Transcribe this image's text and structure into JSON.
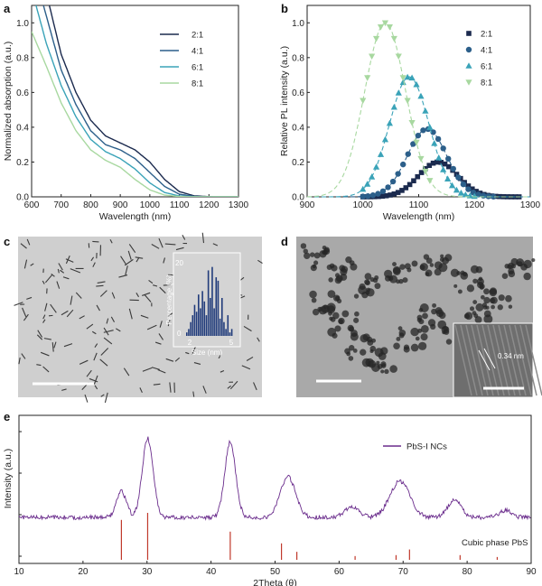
{
  "panels": {
    "a": {
      "letter": "a"
    },
    "b": {
      "letter": "b"
    },
    "c": {
      "letter": "c"
    },
    "d": {
      "letter": "d",
      "lattice_label": "0.34 nm"
    },
    "e": {
      "letter": "e"
    }
  },
  "colors": {
    "2:1": "#1b2a4e",
    "4:1": "#2c5f8a",
    "6:1": "#3aa3b8",
    "8:1": "#a8d8a0",
    "xrd": "#6a2c8c",
    "ref": "#c0392b",
    "hist": "#1f3a7a"
  },
  "chart_data": [
    {
      "id": "a",
      "type": "line",
      "xlabel": "Wavelength (nm)",
      "ylabel": "Normalized absorption (a.u.)",
      "xlim": [
        600,
        1300
      ],
      "ylim": [
        0,
        1.1
      ],
      "xticks": [
        600,
        700,
        800,
        900,
        1000,
        1100,
        1200,
        1300
      ],
      "yticks": [
        0.0,
        0.2,
        0.4,
        0.6,
        0.8,
        1.0
      ],
      "ytick_labels": [
        "0.0",
        "0.2",
        "0.4",
        "0.6",
        "0.8",
        "1.0"
      ],
      "legend": "top-right",
      "series": [
        {
          "name": "2:1",
          "x": [
            660,
            700,
            750,
            800,
            850,
            900,
            950,
            1000,
            1050,
            1100,
            1150,
            1200,
            1250,
            1300
          ],
          "y": [
            1.1,
            0.82,
            0.6,
            0.44,
            0.35,
            0.31,
            0.27,
            0.2,
            0.1,
            0.03,
            0.006,
            0.001,
            0,
            0
          ]
        },
        {
          "name": "4:1",
          "x": [
            640,
            700,
            750,
            800,
            850,
            900,
            950,
            1000,
            1050,
            1100,
            1150,
            1200,
            1250,
            1300
          ],
          "y": [
            1.1,
            0.73,
            0.53,
            0.38,
            0.3,
            0.27,
            0.22,
            0.14,
            0.06,
            0.015,
            0.003,
            0,
            0,
            0
          ]
        },
        {
          "name": "6:1",
          "x": [
            615,
            650,
            700,
            750,
            800,
            850,
            900,
            950,
            1000,
            1050,
            1100,
            1150,
            1200,
            1300
          ],
          "y": [
            1.1,
            0.88,
            0.64,
            0.46,
            0.33,
            0.26,
            0.22,
            0.16,
            0.08,
            0.025,
            0.005,
            0.001,
            0,
            0
          ]
        },
        {
          "name": "8:1",
          "x": [
            600,
            650,
            700,
            750,
            800,
            850,
            900,
            950,
            1000,
            1050,
            1100,
            1150,
            1200,
            1300
          ],
          "y": [
            0.95,
            0.75,
            0.54,
            0.38,
            0.27,
            0.21,
            0.17,
            0.1,
            0.04,
            0.01,
            0.002,
            0,
            0,
            0
          ]
        }
      ]
    },
    {
      "id": "b",
      "type": "scatter",
      "xlabel": "Wavelength (nm)",
      "ylabel": "Relative PL intensity (a.u.)",
      "xlim": [
        900,
        1300
      ],
      "ylim": [
        0,
        1.1
      ],
      "xticks": [
        900,
        1000,
        1100,
        1200,
        1300
      ],
      "yticks": [
        0.0,
        0.2,
        0.4,
        0.6,
        0.8,
        1.0
      ],
      "ytick_labels": [
        "0.0",
        "0.2",
        "0.4",
        "0.6",
        "0.8",
        "1.0"
      ],
      "legend": "top-right",
      "series": [
        {
          "name": "2:1",
          "marker": "square",
          "center": 1135,
          "width": 50,
          "peak": 0.2,
          "points_from": 1000,
          "points_to": 1280,
          "step": 7
        },
        {
          "name": "4:1",
          "marker": "circle",
          "center": 1115,
          "width": 50,
          "peak": 0.39,
          "points_from": 1000,
          "points_to": 1240,
          "step": 9
        },
        {
          "name": "6:1",
          "marker": "triangle-up",
          "center": 1083,
          "width": 50,
          "peak": 0.69,
          "points_from": 1000,
          "points_to": 1200,
          "step": 8
        },
        {
          "name": "8:1",
          "marker": "triangle-down",
          "center": 1040,
          "width": 52,
          "peak": 1.0,
          "points_from": 1000,
          "points_to": 1120,
          "step": 8
        }
      ]
    },
    {
      "id": "c-inset",
      "type": "bar",
      "xlabel": "Size (nm)",
      "ylabel": "Percentage (%)",
      "xlim": [
        1,
        6
      ],
      "xticks": [
        2,
        5
      ],
      "yticks": [
        0,
        20
      ],
      "values": [
        1,
        2,
        4,
        6,
        9,
        7,
        12,
        8,
        13,
        10,
        6,
        19,
        11,
        20,
        8,
        17,
        16,
        5,
        11,
        4,
        2,
        6,
        1,
        2
      ]
    },
    {
      "id": "e",
      "type": "line",
      "xlabel": "2Theta (θ)",
      "ylabel": "Intensity (a.u.)",
      "xlim": [
        10,
        90
      ],
      "xticks": [
        10,
        20,
        30,
        40,
        50,
        60,
        70,
        80,
        90
      ],
      "series": [
        {
          "name": "PbS-I NCs",
          "peaks": [
            [
              26,
              0.3,
              1.1
            ],
            [
              30.1,
              0.92,
              1.2
            ],
            [
              43,
              0.88,
              1.2
            ],
            [
              52,
              0.47,
              1.7
            ],
            [
              62,
              0.13,
              1.5
            ],
            [
              69.5,
              0.42,
              2.2
            ],
            [
              78,
              0.2,
              1.5
            ],
            [
              86,
              0.08,
              1.3
            ]
          ]
        }
      ],
      "reference": {
        "name": "Cubic phase PbS",
        "x": [
          26,
          30.1,
          43,
          51,
          53.4,
          62.5,
          68.9,
          71,
          78.9,
          84.7
        ],
        "y": [
          0.85,
          1.0,
          0.6,
          0.35,
          0.17,
          0.08,
          0.1,
          0.22,
          0.1,
          0.06
        ]
      }
    }
  ]
}
